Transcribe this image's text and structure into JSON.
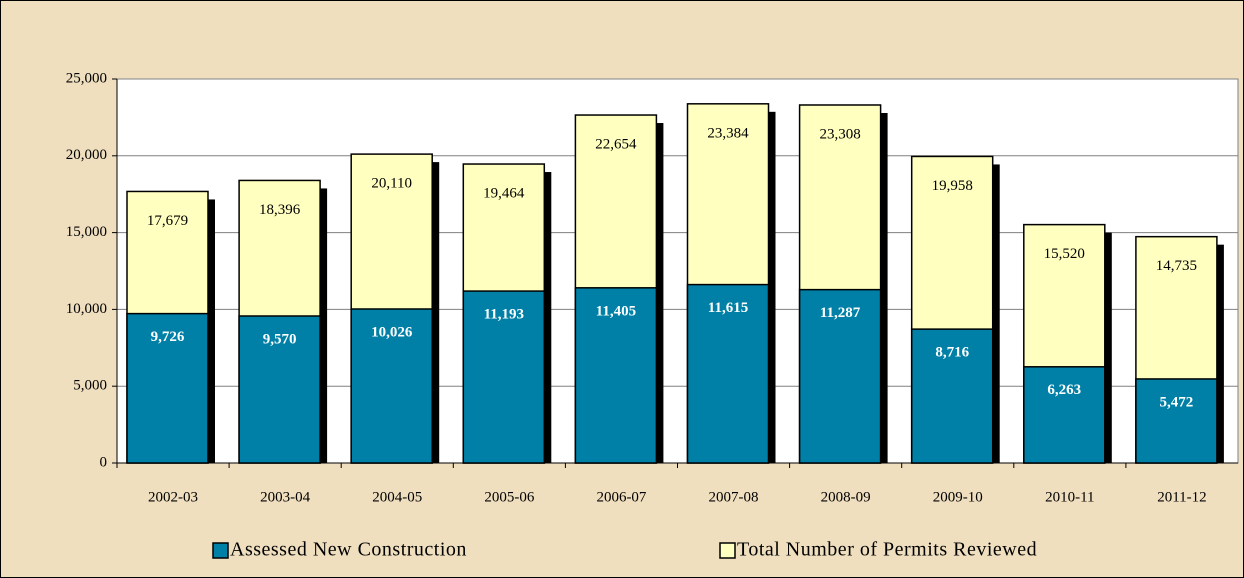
{
  "chart_data": {
    "type": "bar",
    "overlap": true,
    "categories": [
      "2002-03",
      "2003-04",
      "2004-05",
      "2005-06",
      "2006-07",
      "2007-08",
      "2008-09",
      "2009-10",
      "2010-11",
      "2011-12"
    ],
    "series": [
      {
        "name": "Total Number of Permits Reviewed",
        "color": "#ffffc0",
        "values": [
          17679,
          18396,
          20110,
          19464,
          22654,
          23384,
          23308,
          19958,
          15520,
          14735
        ],
        "value_labels": [
          "17,679",
          "18,396",
          "20,110",
          "19,464",
          "22,654",
          "23,384",
          "23,308",
          "19,958",
          "15,520",
          "14,735"
        ]
      },
      {
        "name": "Assessed New Construction",
        "color": "#0080a6",
        "values": [
          9726,
          9570,
          10026,
          11193,
          11405,
          11615,
          11287,
          8716,
          6263,
          5472
        ],
        "value_labels": [
          "9,726",
          "9,570",
          "10,026",
          "11,193",
          "11,405",
          "11,615",
          "11,287",
          "8,716",
          "6,263",
          "5,472"
        ]
      }
    ],
    "ylim": [
      0,
      25000
    ],
    "yticks": [
      0,
      {
        "value": 5000,
        "label": "5,000"
      },
      {
        "value": 10000,
        "label": "10,000"
      },
      {
        "value": 15000,
        "label": "15,000"
      },
      {
        "value": 20000,
        "label": "20,000"
      },
      {
        "value": 25000,
        "label": "25,000"
      }
    ],
    "grid": true
  }
}
